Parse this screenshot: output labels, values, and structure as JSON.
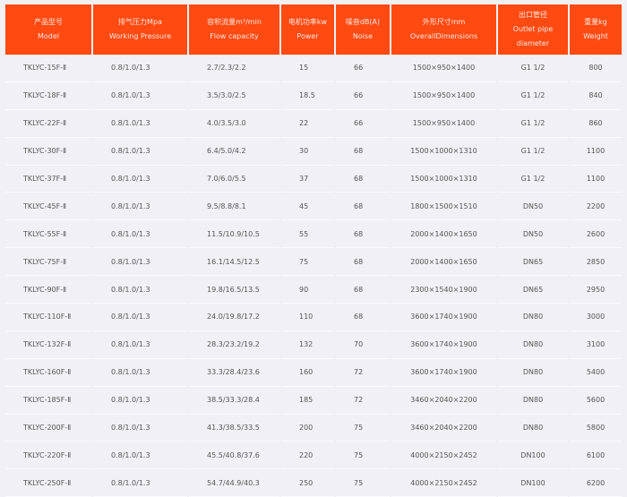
{
  "headers": [
    {
      "zh": "产品型号",
      "en": "Model"
    },
    {
      "zh": "排气压力Mpa",
      "en": "Working Pressure"
    },
    {
      "zh": "容积流量m³/min",
      "en": "Flow capacity"
    },
    {
      "zh": "电机功率kw",
      "en": "Power"
    },
    {
      "zh": "噪音dB(A)",
      "en": "Noise"
    },
    {
      "zh": "外形尺寸mm",
      "en": "OverallDimensions"
    },
    {
      "zh": "出口管径",
      "en": "Outlet pipe diameter"
    },
    {
      "zh": "重量kg",
      "en": "Weight"
    }
  ],
  "rows": [
    [
      "TKLYC-15F-Ⅱ",
      "0.8/1.0/1.3",
      "2.7/2.3/2.2",
      "15",
      "66",
      "1500×950×1400",
      "G1 1/2",
      "800"
    ],
    [
      "TKLYC-18F-Ⅱ",
      "0.8/1.0/1.3",
      "3.5/3.0/2.5",
      "18.5",
      "66",
      "1500×950×1400",
      "G1 1/2",
      "840"
    ],
    [
      "TKLYC-22F-Ⅱ",
      "0.8/1.0/1.3",
      "4.0/3.5/3.0",
      "22",
      "66",
      "1500×950×1400",
      "G1 1/2",
      "860"
    ],
    [
      "TKLYC-30F-Ⅱ",
      "0.8/1.0/1.3",
      "6.4/5.0/4.2",
      "30",
      "68",
      "1500×1000×1310",
      "G1 1/2",
      "1100"
    ],
    [
      "TKLYC-37F-Ⅱ",
      "0.8/1.0/1.3",
      "7.0/6.0/5.5",
      "37",
      "68",
      "1500×1000×1310",
      "G1 1/2",
      "1100"
    ],
    [
      "TKLYC-45F-Ⅱ",
      "0.8/1.0/1.3",
      "9.5/8.8/8.1",
      "45",
      "68",
      "1800×1500×1510",
      "DN50",
      "2200"
    ],
    [
      "TKLYC-55F-Ⅱ",
      "0.8/1.0/1.3",
      "11.5/10.9/10.5",
      "55",
      "68",
      "2000×1400×1650",
      "DN50",
      "2600"
    ],
    [
      "TKLYC-75F-Ⅱ",
      "0.8/1.0/1.3",
      "16.1/14.5/12.5",
      "75",
      "68",
      "2000×1400×1650",
      "DN65",
      "2850"
    ],
    [
      "TKLYC-90F-Ⅱ",
      "0.8/1.0/1.3",
      "19.8/16.5/13.5",
      "90",
      "68",
      "2300×1540×1900",
      "DN65",
      "2950"
    ],
    [
      "TKLYC-110F-Ⅱ",
      "0.8/1.0/1.3",
      "24.0/19.8/17.2",
      "110",
      "68",
      "3600×1740×1900",
      "DN80",
      "3000"
    ],
    [
      "TKLYC-132F-Ⅱ",
      "0.8/1.0/1.3",
      "28.3/23.2/19.2",
      "132",
      "70",
      "3600×1740×1900",
      "DN80",
      "3100"
    ],
    [
      "TKLYC-160F-Ⅱ",
      "0.8/1.0/1.3",
      "33.3/28.4/23.6",
      "160",
      "72",
      "3600×1740×1900",
      "DN80",
      "5400"
    ],
    [
      "TKLYC-185F-Ⅱ",
      "0.8/1.0/1.3",
      "38.5/33.3/28.4",
      "185",
      "72",
      "3460×2040×2200",
      "DN80",
      "5600"
    ],
    [
      "TKLYC-200F-Ⅱ",
      "0.8/1.0/1.3",
      "41.3/38.5/33.5",
      "200",
      "75",
      "3460×2040×2200",
      "DN80",
      "5800"
    ],
    [
      "TKLYC-220F-Ⅱ",
      "0.8/1.0/1.3",
      "45.5/40.8/37.6",
      "220",
      "75",
      "4000×2150×2452",
      "DN100",
      "6100"
    ],
    [
      "TKLYC-250F-Ⅱ",
      "0.8/1.0/1.3",
      "54.7/44.9/40.3",
      "250",
      "75",
      "4000×2150×2452",
      "DN100",
      "6200"
    ]
  ],
  "colors": {
    "header_bg": "#ff4a12",
    "body_bg": "#f1f1f5"
  }
}
